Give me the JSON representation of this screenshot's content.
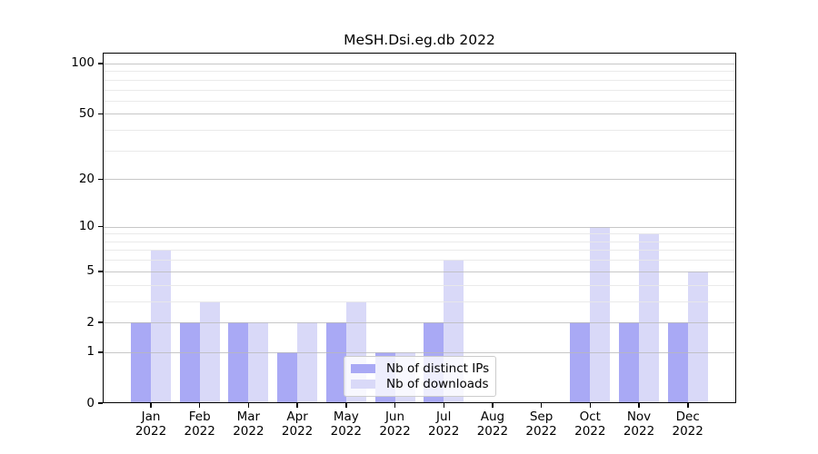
{
  "title": "MeSH.Dsi.eg.db 2022",
  "chart_data": {
    "type": "bar",
    "title": "MeSH.Dsi.eg.db 2022",
    "scale": "log1p",
    "grid": true,
    "year": "2022",
    "categories": [
      "Jan",
      "Feb",
      "Mar",
      "Apr",
      "May",
      "Jun",
      "Jul",
      "Aug",
      "Sep",
      "Oct",
      "Nov",
      "Dec"
    ],
    "series": [
      {
        "name": "Nb of distinct IPs",
        "color": "#a9a9f5",
        "values": [
          2,
          2,
          2,
          1,
          2,
          1,
          2,
          0,
          0,
          2,
          2,
          2
        ]
      },
      {
        "name": "Nb of downloads",
        "color": "#d9d9f8",
        "values": [
          7,
          3,
          2,
          2,
          3,
          1,
          6,
          0,
          0,
          10,
          9,
          5
        ]
      }
    ],
    "y_axis": {
      "major_ticks": [
        0,
        1,
        2,
        5,
        10,
        20,
        50,
        100
      ],
      "minor_gridlines": [
        3,
        4,
        6,
        7,
        8,
        9,
        30,
        40,
        60,
        70,
        80,
        90
      ],
      "top": 116
    },
    "legend": {
      "position": "lower-center",
      "entries": [
        "Nb of distinct IPs",
        "Nb of downloads"
      ]
    },
    "colors": {
      "grid_major": "#b9b9b9",
      "grid_minor": "#e8e8e8",
      "axis": "#000000",
      "legend_border": "#cccccc",
      "background": "#ffffff"
    }
  }
}
